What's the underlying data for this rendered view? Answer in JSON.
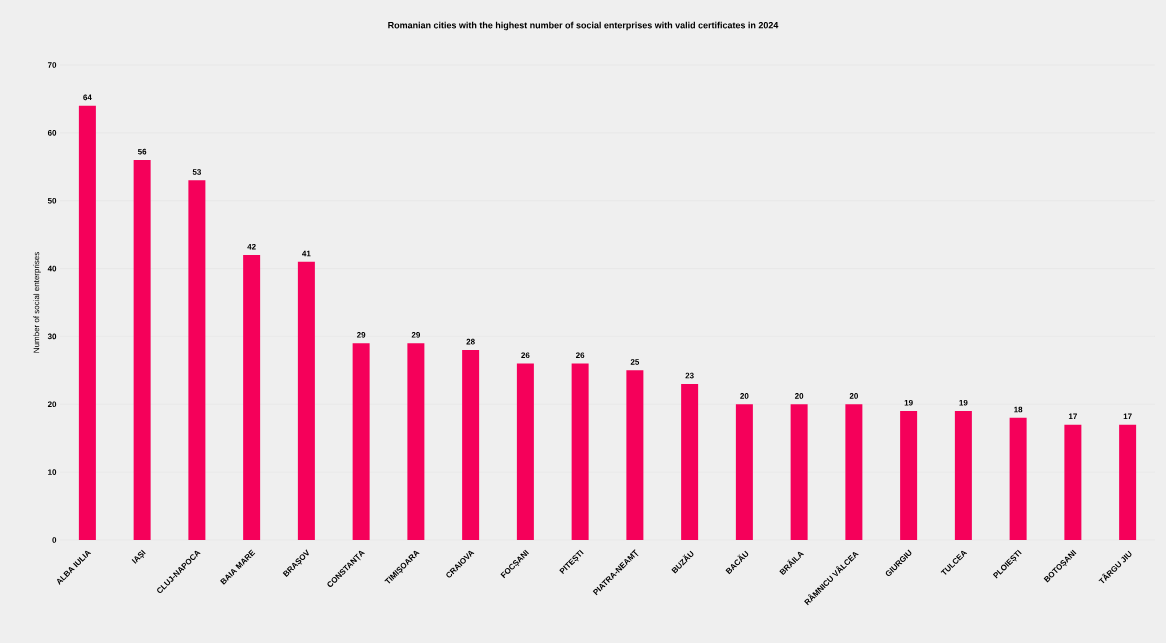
{
  "chart_data": {
    "type": "bar",
    "title": "Romanian cities with the highest number of social enterprises with valid certificates in 2024",
    "ylabel": "Number of social enterprises",
    "categories": [
      "ALBA IULIA",
      "IAȘI",
      "CLUJ-NAPOCA",
      "BAIA MARE",
      "BRAȘOV",
      "CONSTANȚA",
      "TIMIȘOARA",
      "CRAIOVA",
      "FOCȘANI",
      "PITEȘTI",
      "PIATRA-NEAMȚ",
      "BUZĂU",
      "BACĂU",
      "BRĂILA",
      "RÂMNICU VÂLCEA",
      "GIURGIU",
      "TULCEA",
      "PLOIEȘTI",
      "BOTOȘANI",
      "TÂRGU JIU"
    ],
    "values": [
      64,
      56,
      53,
      42,
      41,
      29,
      29,
      28,
      26,
      26,
      25,
      23,
      20,
      20,
      20,
      19,
      19,
      18,
      17,
      17
    ],
    "color": "#f5005a",
    "ylim": [
      0,
      70
    ],
    "yticks": [
      0,
      10,
      20,
      30,
      40,
      50,
      60,
      70
    ],
    "grid": "y",
    "data_labels": true
  }
}
